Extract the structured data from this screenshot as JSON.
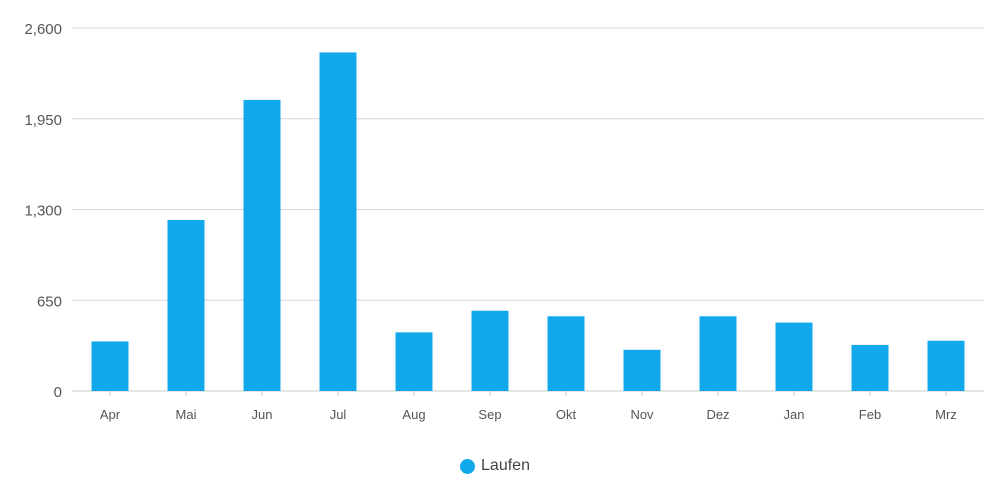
{
  "chart_data": {
    "type": "bar",
    "categories": [
      "Apr",
      "Mai",
      "Jun",
      "Jul",
      "Aug",
      "Sep",
      "Okt",
      "Nov",
      "Dez",
      "Jan",
      "Feb",
      "Mrz"
    ],
    "series": [
      {
        "name": "Laufen",
        "color": "#12a8ec",
        "values": [
          355,
          1225,
          2085,
          2425,
          420,
          575,
          535,
          295,
          535,
          490,
          330,
          360
        ]
      }
    ],
    "ylim": [
      0,
      2600
    ],
    "yticks": [
      0,
      650,
      1300,
      1950,
      2600
    ],
    "ytick_labels": [
      "0",
      "650",
      "1,300",
      "1,950",
      "2,600"
    ],
    "grid": true,
    "legend_position": "bottom-center",
    "title": "",
    "xlabel": "",
    "ylabel": ""
  },
  "legend": {
    "label": "Laufen",
    "color": "#12a8ec"
  }
}
